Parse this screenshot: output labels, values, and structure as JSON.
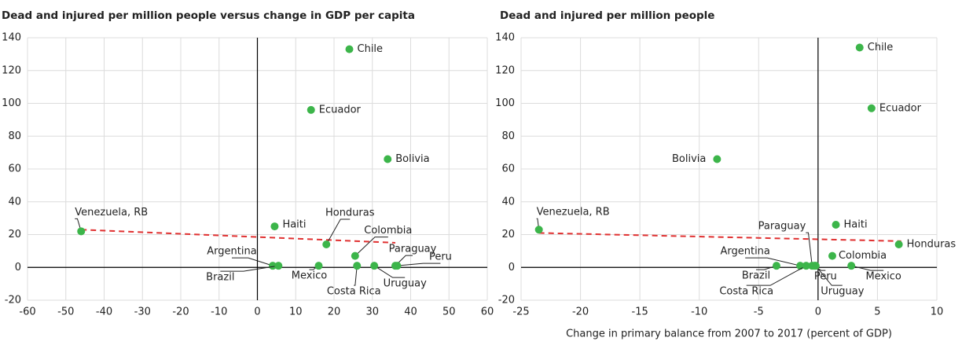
{
  "chart_data": [
    {
      "type": "scatter",
      "title": "Dead and injured per million people versus change in GDP per capita",
      "labels": [
        "Chile",
        "Ecuador",
        "Bolivia",
        "Venezuela, RB",
        "Haiti",
        "Honduras",
        "Colombia",
        "Paraguay",
        "Peru",
        "Argentina",
        "Brazil",
        "Mexico",
        "Costa Rica",
        "Uruguay"
      ],
      "x": [
        24,
        14,
        34,
        -46,
        4.5,
        18,
        25.5,
        36,
        36.5,
        4,
        5.5,
        16,
        26,
        30.5
      ],
      "y": [
        133,
        96,
        66,
        22,
        25,
        14,
        7,
        1,
        1,
        1,
        1,
        1,
        1,
        1
      ],
      "color": "#3cb54a",
      "trend": {
        "x": [
          -46,
          36
        ],
        "y": [
          23,
          15
        ],
        "color": "#e03030"
      },
      "xlim": [
        -60,
        60
      ],
      "xticks": [
        -60,
        -50,
        -40,
        -30,
        -20,
        -10,
        0,
        10,
        20,
        30,
        40,
        50,
        60
      ],
      "ylim": [
        -20,
        140
      ],
      "yticks": [
        -20,
        0,
        20,
        40,
        60,
        80,
        100,
        120,
        140
      ],
      "grid": true
    },
    {
      "type": "scatter",
      "title": "Dead and injured per million people",
      "x_label": "Change in primary balance from 2007 to 2017 (percent of GDP)",
      "labels": [
        "Chile",
        "Ecuador",
        "Bolivia",
        "Venezuela, RB",
        "Haiti",
        "Honduras",
        "Colombia",
        "Paraguay",
        "Argentina",
        "Brazil",
        "Costa Rica",
        "Peru",
        "Uruguay",
        "Mexico"
      ],
      "x": [
        3.5,
        4.5,
        -8.5,
        -23.5,
        1.5,
        6.8,
        1.2,
        -0.5,
        -1.5,
        -3.5,
        -1,
        -0.3,
        -0.2,
        2.8
      ],
      "y": [
        134,
        97,
        66,
        23,
        26,
        14,
        7,
        1,
        1,
        1,
        1,
        1,
        1,
        1
      ],
      "color": "#3cb54a",
      "trend": {
        "x": [
          -23.5,
          7
        ],
        "y": [
          21,
          16
        ],
        "color": "#e03030"
      },
      "xlim": [
        -25,
        10
      ],
      "xticks": [
        -25,
        -20,
        -15,
        -10,
        -5,
        0,
        5,
        10
      ],
      "ylim": [
        -20,
        140
      ],
      "yticks": [
        -20,
        0,
        20,
        40,
        60,
        80,
        100,
        120,
        140
      ],
      "grid": true
    }
  ]
}
